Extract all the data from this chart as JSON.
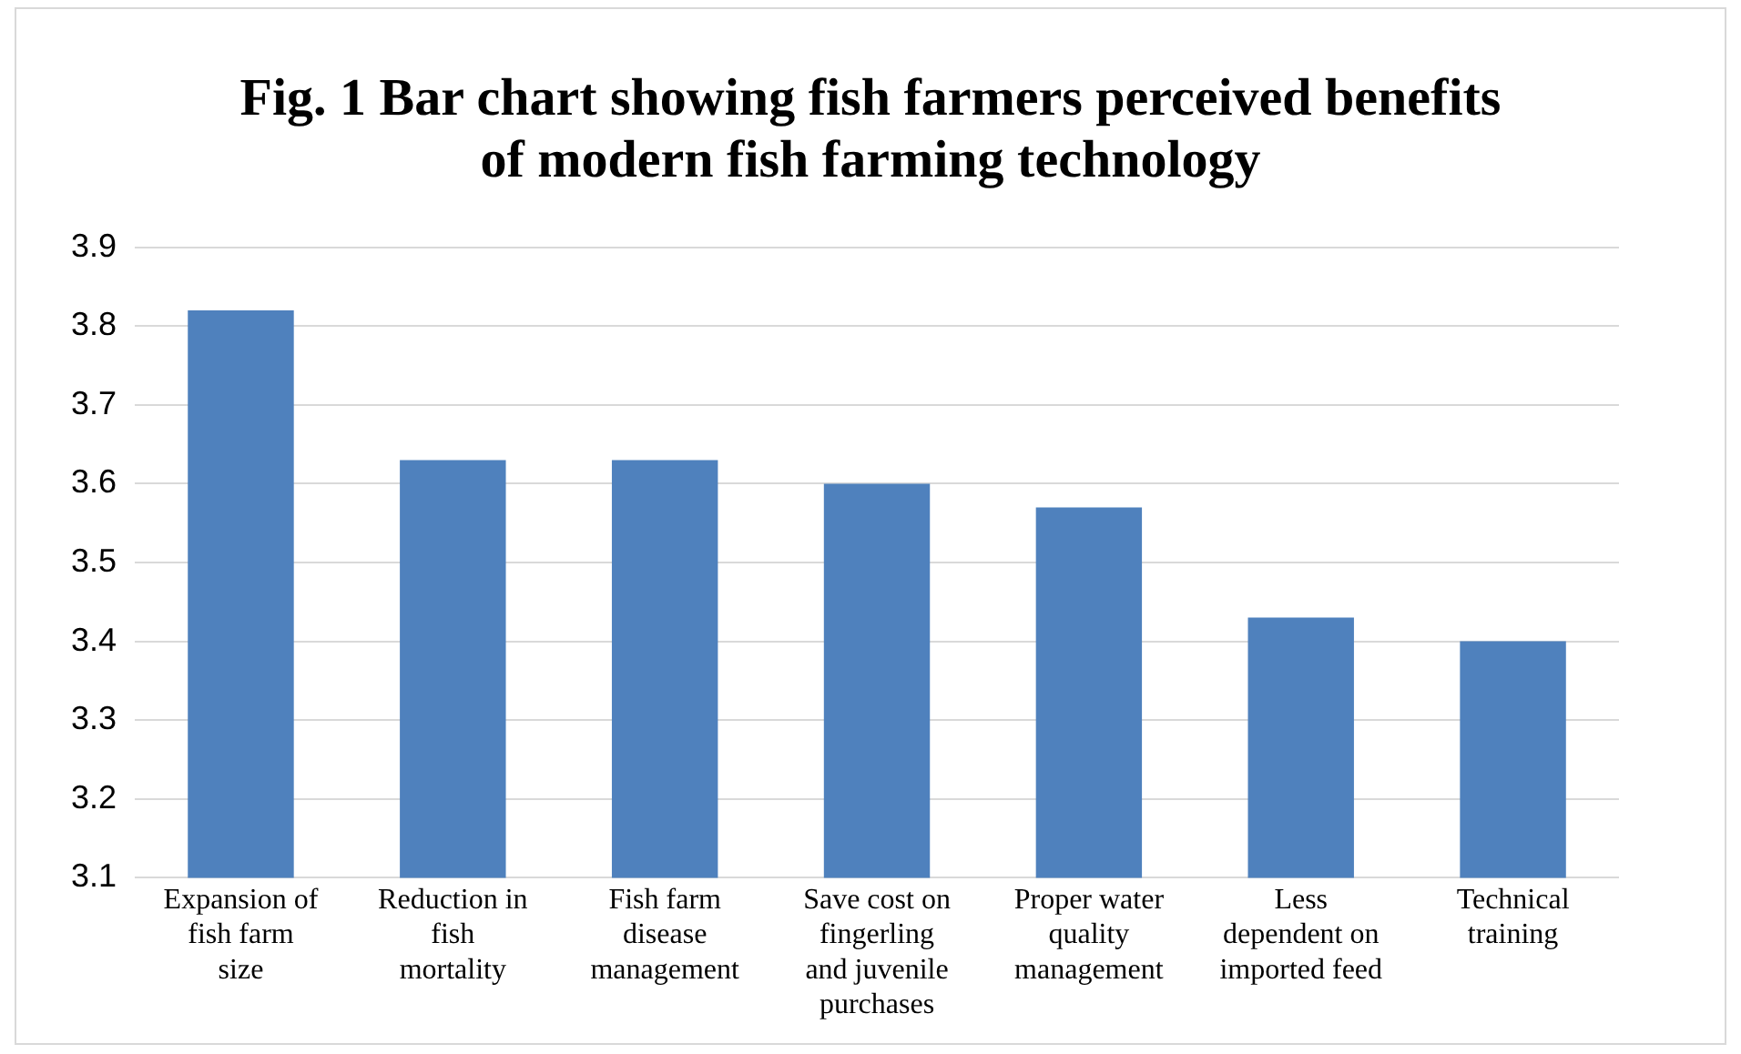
{
  "chart_data": {
    "type": "bar",
    "title": "Fig. 1 Bar chart showing fish farmers perceived benefits of modern fish farming technology",
    "categories": [
      "Expansion of fish farm size",
      "Reduction in fish mortality",
      "Fish farm disease management",
      "Save cost on fingerling and juvenile purchases",
      "Proper water quality management",
      "Less dependent on imported feed",
      "Technical training"
    ],
    "values": [
      3.82,
      3.63,
      3.63,
      3.6,
      3.57,
      3.43,
      3.4
    ],
    "color": "#4f81bd",
    "ylim": [
      3.1,
      3.9
    ],
    "yticks": [
      3.1,
      3.2,
      3.3,
      3.4,
      3.5,
      3.6,
      3.7,
      3.8,
      3.9
    ],
    "grid": "y"
  }
}
